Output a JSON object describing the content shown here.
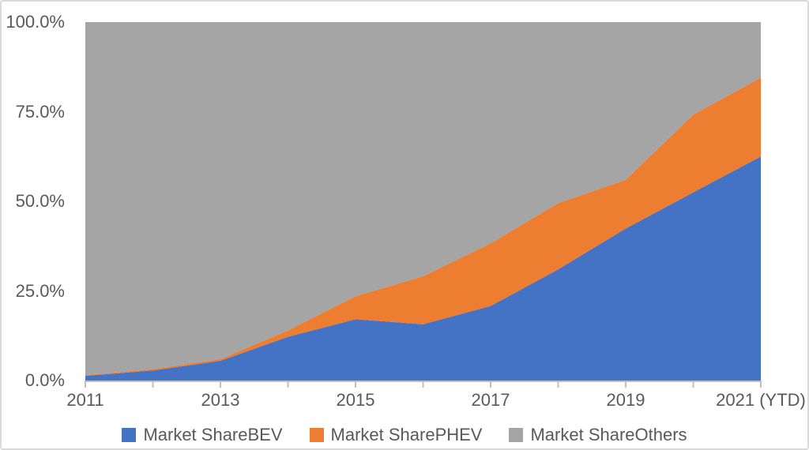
{
  "chart_data": {
    "type": "area",
    "stacked": true,
    "title": "",
    "xlabel": "",
    "ylabel": "",
    "ylim": [
      0,
      100
    ],
    "grid": false,
    "legend_position": "bottom",
    "x": [
      "2011",
      "2012",
      "2013",
      "2014",
      "2015",
      "2016",
      "2017",
      "2018",
      "2019",
      "2020",
      "2021 (YTD)"
    ],
    "series": [
      {
        "name": "Market ShareBEV",
        "color": "#4472C4",
        "values": [
          1.3,
          2.8,
          5.5,
          12.2,
          17.1,
          15.7,
          20.8,
          31.0,
          42.4,
          52.5,
          62.5
        ]
      },
      {
        "name": "Market SharePHEV",
        "color": "#ED7D31",
        "values": [
          0.2,
          0.4,
          0.5,
          1.8,
          6.4,
          13.4,
          17.5,
          18.5,
          13.6,
          21.7,
          22.0
        ]
      },
      {
        "name": "Market ShareOthers",
        "color": "#A5A5A5",
        "values": [
          98.5,
          96.8,
          94.0,
          86.0,
          76.5,
          70.9,
          61.7,
          50.5,
          44.0,
          25.8,
          15.5
        ]
      }
    ],
    "y_axis": {
      "tick_values": [
        0,
        25,
        50,
        75,
        100
      ],
      "tick_labels": [
        "0.0%",
        "25.0%",
        "50.0%",
        "75.0%",
        "100.0%"
      ]
    },
    "x_axis": {
      "labeled_tick_indices": [
        0,
        2,
        4,
        6,
        8,
        10
      ],
      "tick_labels": [
        "2011",
        "2013",
        "2015",
        "2017",
        "2019",
        "2021 (YTD)"
      ],
      "minor_tick_every_point": true
    }
  },
  "styles": {
    "axis_line_color": "#bfbfbf",
    "tick_color": "#bfbfbf",
    "text_color": "#595959",
    "frame_border_color": "#d9d9d9",
    "background_color": "#ffffff"
  }
}
